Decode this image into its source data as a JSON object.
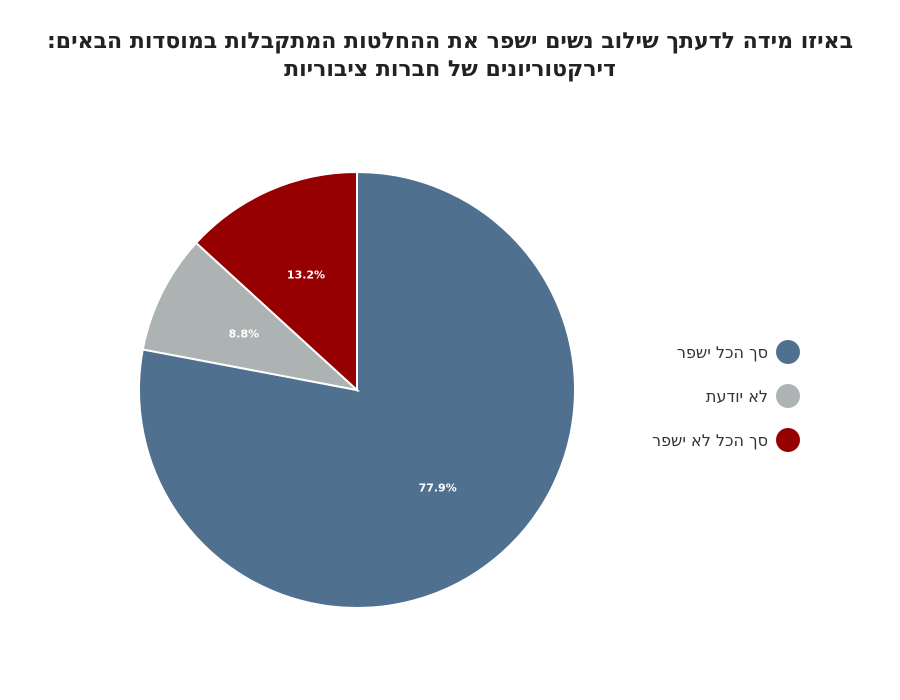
{
  "chart_data": {
    "type": "pie",
    "title": "באיזו מידה לדעתך שילוב נשים ישפר את ההחלטות המתקבלות במוסדות הבאים:",
    "subtitle": "דירקטוריונים של חברות ציבוריות",
    "legend_position": "right",
    "categories": [
      "סך הכל ישפר",
      "לא יודעת",
      "סך הכל לא ישפר"
    ],
    "values": [
      77.9,
      8.8,
      13.2
    ],
    "value_labels": [
      "77.9%",
      "8.8%",
      "13.2%"
    ],
    "colors": [
      "#50708f",
      "#adb2b3",
      "#960000"
    ]
  }
}
